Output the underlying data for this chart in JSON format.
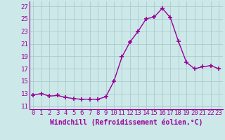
{
  "hours": [
    0,
    1,
    2,
    3,
    4,
    5,
    6,
    7,
    8,
    9,
    10,
    11,
    12,
    13,
    14,
    15,
    16,
    17,
    18,
    19,
    20,
    21,
    22,
    23
  ],
  "values": [
    12.8,
    13.0,
    12.6,
    12.7,
    12.4,
    12.2,
    12.1,
    12.1,
    12.1,
    12.5,
    15.0,
    18.9,
    21.3,
    23.0,
    25.0,
    25.3,
    26.7,
    25.2,
    21.4,
    18.0,
    17.0,
    17.3,
    17.5,
    17.0
  ],
  "line_color": "#990099",
  "marker": "+",
  "marker_size": 4,
  "bg_color": "#cce8e8",
  "grid_color": "#aacccc",
  "xlabel": "Windchill (Refroidissement éolien,°C)",
  "yticks": [
    11,
    13,
    15,
    17,
    19,
    21,
    23,
    25,
    27
  ],
  "xtick_labels": [
    "0",
    "1",
    "2",
    "3",
    "4",
    "5",
    "6",
    "7",
    "8",
    "9",
    "10",
    "11",
    "12",
    "13",
    "14",
    "15",
    "16",
    "17",
    "18",
    "19",
    "20",
    "21",
    "22",
    "23"
  ],
  "ylim": [
    10.5,
    27.8
  ],
  "xlim": [
    -0.5,
    23.5
  ],
  "xlabel_fontsize": 7,
  "tick_fontsize": 6.5,
  "linewidth": 1.0
}
